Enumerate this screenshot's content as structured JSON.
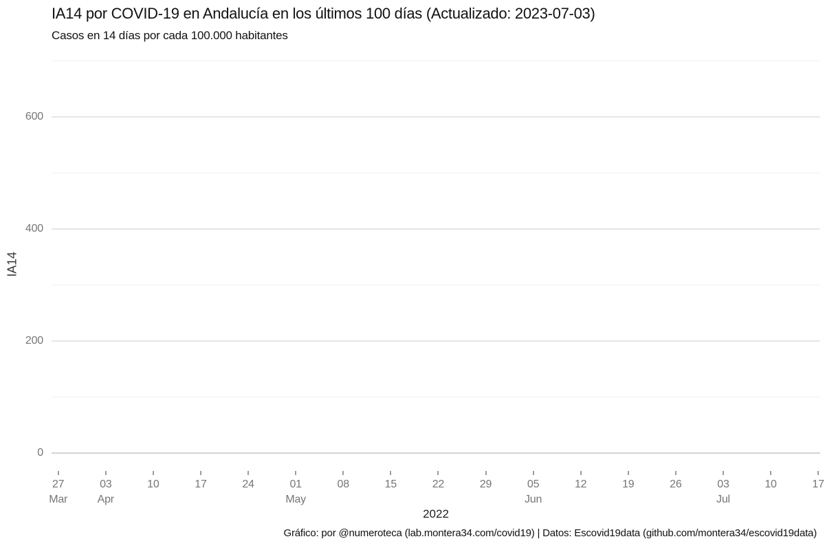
{
  "header": {
    "title": "IA14 por COVID-19 en Andalucía en los últimos 100 días (Actualizado: 2023-07-03)",
    "subtitle": "Casos en 14 días por cada 100.000 habitantes"
  },
  "chart_data": {
    "type": "line",
    "title": "IA14 por COVID-19 en Andalucía en los últimos 100 días (Actualizado: 2023-07-03)",
    "subtitle": "Casos en 14 días por cada 100.000 habitantes",
    "updated": "2023-07-03",
    "xlabel": "2022",
    "ylabel": "IA14",
    "ylim": [
      0,
      700
    ],
    "grid": true,
    "legend_position": "none",
    "y_major_ticks": [
      0,
      200,
      400,
      600
    ],
    "y_minor_gridlines": [
      100,
      300,
      500,
      700
    ],
    "x_tick_interval_days": 7,
    "x_ticks": [
      {
        "day": "27",
        "month": "Mar"
      },
      {
        "day": "03",
        "month": "Apr"
      },
      {
        "day": "10"
      },
      {
        "day": "17"
      },
      {
        "day": "24"
      },
      {
        "day": "01",
        "month": "May"
      },
      {
        "day": "08"
      },
      {
        "day": "15"
      },
      {
        "day": "22"
      },
      {
        "day": "29"
      },
      {
        "day": "05",
        "month": "Jun"
      },
      {
        "day": "12"
      },
      {
        "day": "19"
      },
      {
        "day": "26"
      },
      {
        "day": "03",
        "month": "Jul"
      },
      {
        "day": "10"
      },
      {
        "day": "17"
      }
    ],
    "series": [],
    "colors": {
      "grid_major": "#e6e6e6",
      "grid_minor": "#f2f2f2",
      "axis_zero_line": "#d3d3d3",
      "tick_mark": "#9c9c9c",
      "tick_text": "#757575",
      "title_text": "#111111"
    }
  },
  "footer": {
    "credit": "Gráfico: por @numeroteca (lab.montera34.com/covid19) | Datos: Escovid19data (github.com/montera34/escovid19data)"
  }
}
